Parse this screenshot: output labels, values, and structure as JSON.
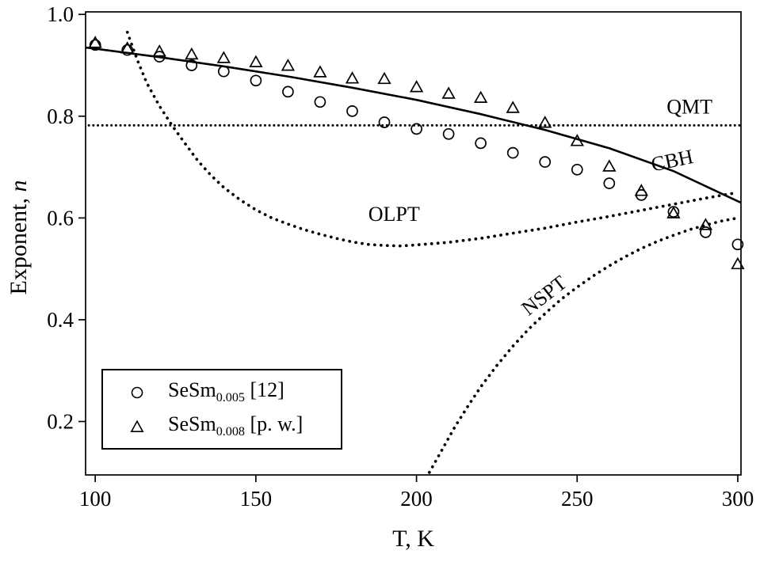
{
  "figure": {
    "bg": "#ffffff",
    "ink": "#000000"
  },
  "axes": {
    "xlabel": "T, K",
    "ylabel_prefix": "Exponent, ",
    "ylabel_symbol": "n"
  },
  "chart_data": {
    "type": "scatter",
    "title": "",
    "xlabel": "T, K",
    "ylabel": "Exponent, n",
    "xlim": [
      97,
      301
    ],
    "ylim": [
      0.095,
      1.005
    ],
    "xticks": [
      100,
      150,
      200,
      250,
      300
    ],
    "yticks": [
      0.2,
      0.4,
      0.6,
      0.8,
      1.0
    ],
    "grid": false,
    "legend_position": "lower-left",
    "series": [
      {
        "name": "SeSm0.005 [12]",
        "marker": "circle",
        "x": [
          100,
          110,
          120,
          130,
          140,
          150,
          160,
          170,
          180,
          190,
          200,
          210,
          220,
          230,
          240,
          250,
          260,
          270,
          280,
          290,
          300
        ],
        "y": [
          0.94,
          0.93,
          0.917,
          0.9,
          0.888,
          0.87,
          0.848,
          0.828,
          0.81,
          0.788,
          0.775,
          0.765,
          0.747,
          0.728,
          0.71,
          0.695,
          0.668,
          0.645,
          0.612,
          0.572,
          0.548
        ]
      },
      {
        "name": "SeSm0.008 [p. w.]",
        "marker": "triangle",
        "x": [
          100,
          110,
          120,
          130,
          140,
          150,
          160,
          170,
          180,
          190,
          200,
          210,
          220,
          230,
          240,
          250,
          260,
          270,
          280,
          290,
          300
        ],
        "y": [
          0.943,
          0.932,
          0.926,
          0.92,
          0.913,
          0.905,
          0.898,
          0.885,
          0.873,
          0.872,
          0.856,
          0.843,
          0.835,
          0.815,
          0.786,
          0.75,
          0.7,
          0.652,
          0.608,
          0.585,
          0.508
        ]
      }
    ],
    "curves": [
      {
        "name": "QMT",
        "style": "dotted-small",
        "x": [
          98,
          301
        ],
        "y": [
          0.782,
          0.782
        ]
      },
      {
        "name": "CBH",
        "style": "solid",
        "x": [
          97,
          120,
          140,
          160,
          180,
          200,
          220,
          240,
          260,
          280,
          301
        ],
        "y": [
          0.935,
          0.916,
          0.898,
          0.878,
          0.856,
          0.832,
          0.804,
          0.773,
          0.737,
          0.692,
          0.63
        ]
      },
      {
        "name": "OLPT",
        "style": "dotted-large",
        "x": [
          110,
          113,
          116,
          120,
          124,
          128,
          132,
          136,
          140,
          145,
          150,
          155,
          160,
          165,
          170,
          175,
          180,
          185,
          190,
          195,
          200,
          210,
          220,
          230,
          240,
          250,
          260,
          270,
          280,
          290,
          300
        ],
        "y": [
          0.965,
          0.912,
          0.866,
          0.82,
          0.781,
          0.746,
          0.712,
          0.684,
          0.66,
          0.636,
          0.616,
          0.6,
          0.588,
          0.577,
          0.568,
          0.56,
          0.553,
          0.548,
          0.546,
          0.545,
          0.547,
          0.552,
          0.56,
          0.57,
          0.58,
          0.592,
          0.603,
          0.615,
          0.627,
          0.639,
          0.65
        ]
      },
      {
        "name": "NSPT",
        "style": "dotted-large",
        "x": [
          204,
          208,
          212,
          216,
          220,
          225,
          230,
          235,
          240,
          245,
          250,
          255,
          260,
          265,
          270,
          275,
          280,
          285,
          290,
          295,
          300
        ],
        "y": [
          0.1,
          0.145,
          0.19,
          0.23,
          0.268,
          0.31,
          0.348,
          0.382,
          0.412,
          0.44,
          0.464,
          0.486,
          0.506,
          0.524,
          0.54,
          0.554,
          0.566,
          0.577,
          0.586,
          0.594,
          0.6
        ]
      }
    ],
    "annotations": [
      {
        "text": "QMT",
        "x": 285,
        "y": 0.805,
        "rotate": 0
      },
      {
        "text": "CBH",
        "x": 280,
        "y": 0.7,
        "rotate": -12
      },
      {
        "text": "OLPT",
        "x": 193,
        "y": 0.594,
        "rotate": 0
      },
      {
        "text": "NSPT",
        "x": 241,
        "y": 0.437,
        "rotate": -38
      }
    ],
    "legend": {
      "entries": [
        {
          "marker": "circle",
          "base": "SeSm",
          "sub": "0.005",
          "suffix": " [12]"
        },
        {
          "marker": "triangle",
          "base": "SeSm",
          "sub": "0.008",
          "suffix": " [p. w.]"
        }
      ]
    }
  }
}
